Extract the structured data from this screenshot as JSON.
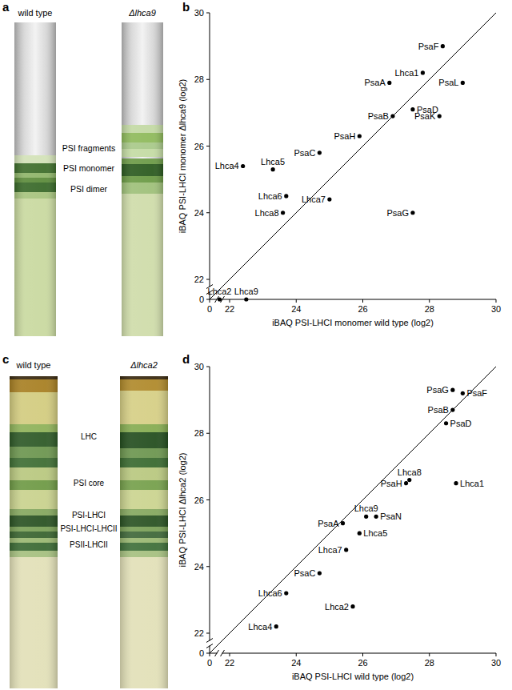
{
  "gels": [
    {
      "panel": "a",
      "lanes": [
        "wild type",
        "Δlhca9"
      ],
      "bands": [
        "PSI fragments",
        "PSI monomer",
        "PSI dimer"
      ]
    },
    {
      "panel": "c",
      "lanes": [
        "wild type",
        "Δlhca2"
      ],
      "bands": [
        "LHC",
        "PSI core",
        "PSI-LHCI",
        "PSI-LHCI-LHCII",
        "PSII-LHCII"
      ]
    }
  ],
  "chart_data": [
    {
      "panel": "b",
      "type": "scatter",
      "xlabel": "iBAQ PSI-LHCI monomer wild type (log2)",
      "ylabel": "iBAQ PSI-LHCI monomer Δlhca9 (log2)",
      "labels": [
        "PsaF",
        "Lhca1",
        "PsaA",
        "PsaL",
        "PsaB",
        "PsaD",
        "PsaK",
        "PsaH",
        "PsaC",
        "Lhca4",
        "Lhca5",
        "Lhca6",
        "Lhca7",
        "Lhca8",
        "PsaG",
        "Lhca2",
        "Lhca9"
      ],
      "x": [
        28.4,
        27.8,
        26.8,
        29.0,
        26.9,
        27.5,
        28.3,
        25.9,
        24.7,
        22.4,
        23.3,
        23.7,
        25.0,
        23.6,
        27.5,
        21.7,
        22.5
      ],
      "values": [
        29.0,
        28.2,
        27.9,
        27.9,
        26.9,
        27.1,
        26.9,
        26.3,
        25.8,
        25.4,
        25.3,
        24.5,
        24.4,
        24.0,
        24.0,
        0,
        0
      ],
      "xlim": [
        0,
        30
      ],
      "ylim": [
        0,
        30
      ],
      "xticks": [
        0,
        22,
        24,
        26,
        28,
        30
      ],
      "yticks": [
        0,
        22,
        24,
        26,
        28,
        30
      ],
      "color": "#000000",
      "marker": "circle",
      "grid": false
    },
    {
      "panel": "d",
      "type": "scatter",
      "xlabel": "iBAQ PSI-LHCI wild type (log2)",
      "ylabel": "iBAQ PSI-LHCI Δlhca2 (log2)",
      "labels": [
        "PsaG",
        "PsaF",
        "PsaB",
        "PsaD",
        "Lhca8",
        "PsaH",
        "Lhca1",
        "Lhca9",
        "PsaN",
        "PsaA",
        "Lhca5",
        "Lhca7",
        "PsaC",
        "Lhca6",
        "Lhca2",
        "Lhca4"
      ],
      "x": [
        28.7,
        29.0,
        28.7,
        28.5,
        27.4,
        27.3,
        28.8,
        26.1,
        26.4,
        25.4,
        25.9,
        25.5,
        24.7,
        23.7,
        25.7,
        23.4
      ],
      "values": [
        29.3,
        29.2,
        28.7,
        28.3,
        26.6,
        26.5,
        26.5,
        25.5,
        25.5,
        25.3,
        25.0,
        24.5,
        23.8,
        23.2,
        22.8,
        22.2
      ],
      "xlim": [
        0,
        30
      ],
      "ylim": [
        0,
        30
      ],
      "xticks": [
        0,
        22,
        24,
        26,
        28,
        30
      ],
      "yticks": [
        0,
        22,
        24,
        26,
        28,
        30
      ],
      "color": "#000000",
      "marker": "circle",
      "grid": false
    }
  ]
}
